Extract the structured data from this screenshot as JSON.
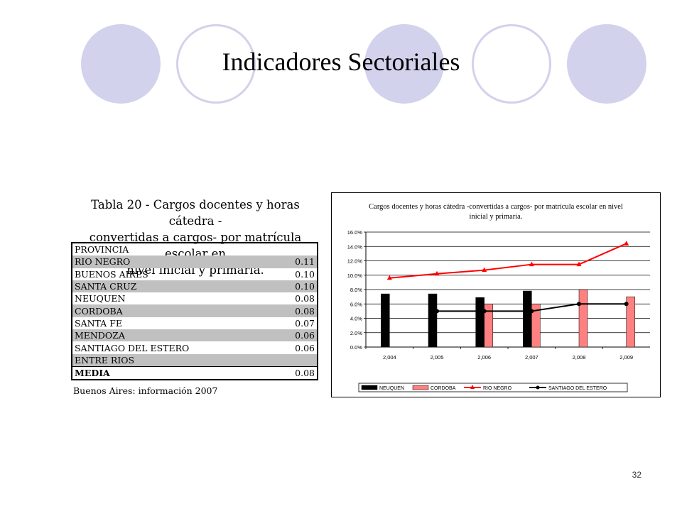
{
  "slide": {
    "title": "Indicadores Sectoriales",
    "page_number": "32",
    "accent_color": "#d2d2ec"
  },
  "table": {
    "caption_lines": [
      "Tabla 20 - Cargos docentes y horas cátedra -",
      "convertidas a cargos- por matrícula escolar en",
      "nivel inicial y primaria."
    ],
    "header": "PROVINCIA",
    "rows": [
      {
        "province": "RIO NEGRO",
        "value": "0.11"
      },
      {
        "province": "BUENOS AIRES",
        "value": "0.10"
      },
      {
        "province": "SANTA CRUZ",
        "value": "0.10"
      },
      {
        "province": "NEUQUEN",
        "value": "0.08"
      },
      {
        "province": "CORDOBA",
        "value": "0.08"
      },
      {
        "province": "SANTA FE",
        "value": "0.07"
      },
      {
        "province": "MENDOZA",
        "value": "0.06"
      },
      {
        "province": "SANTIAGO DEL ESTERO",
        "value": "0.06"
      },
      {
        "province": "ENTRE RIOS",
        "value": ""
      }
    ],
    "media": {
      "label": "MEDIA",
      "value": "0.08"
    },
    "note": "Buenos Aires: información 2007",
    "shade_color": "#c0c0c0"
  },
  "chart_data": {
    "type": "bar",
    "title_lines": [
      "Cargos docentes y horas cátedra -convertidas a cargos- por matrícula escolar en nivel",
      "inicial y primaria."
    ],
    "categories": [
      "2,004",
      "2,005",
      "2,006",
      "2,007",
      "2,008",
      "2,009"
    ],
    "yticks": [
      "0.0%",
      "2.0%",
      "4.0%",
      "6.0%",
      "8.0%",
      "10.0%",
      "12.0%",
      "14.0%",
      "16.0%"
    ],
    "ylim": [
      0,
      16
    ],
    "grid": true,
    "legend_position": "bottom",
    "series": [
      {
        "name": "NEUQUEN",
        "kind": "bar",
        "color": "#000000",
        "values": [
          7.4,
          7.4,
          6.9,
          7.8,
          null,
          null
        ]
      },
      {
        "name": "CORDOBA",
        "kind": "bar",
        "color": "#ff8080",
        "values": [
          null,
          null,
          6.0,
          6.0,
          8.0,
          7.0
        ]
      },
      {
        "name": "RIO NEGRO",
        "kind": "line",
        "marker": "triangle",
        "color": "#ff0000",
        "values": [
          9.6,
          10.2,
          10.7,
          11.5,
          11.5,
          14.4
        ]
      },
      {
        "name": "SANTIAGO DEL ESTERO",
        "kind": "line",
        "marker": "diamond",
        "color": "#000000",
        "values": [
          null,
          5.0,
          5.0,
          5.0,
          6.0,
          6.0
        ]
      }
    ]
  }
}
